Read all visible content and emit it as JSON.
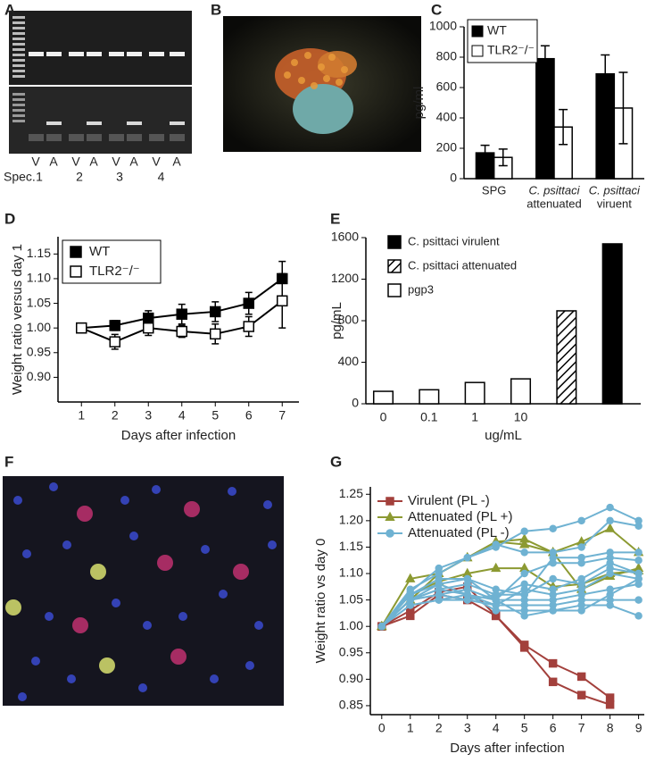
{
  "panel_labels": [
    "A",
    "B",
    "C",
    "D",
    "E",
    "F",
    "G"
  ],
  "gel": {
    "lanes": [
      "V",
      "A",
      "V",
      "A",
      "V",
      "A",
      "V",
      "A"
    ],
    "row_label": "Spec.",
    "specimens": [
      "1",
      "2",
      "3",
      "4"
    ]
  },
  "chart_data": [
    {
      "type": "bar",
      "ylabel": "pg/ml",
      "categories": [
        [
          "SPG"
        ],
        [
          "C. psittaci",
          "attenuated"
        ],
        [
          "C. psittaci",
          "viruent"
        ]
      ],
      "series": [
        {
          "name": "WT",
          "color": "#000000",
          "values": [
            170,
            790,
            690
          ],
          "errors": [
            50,
            85,
            125
          ]
        },
        {
          "name": "TLR2⁻/⁻",
          "color": "#ffffff",
          "values": [
            140,
            340,
            465
          ],
          "errors": [
            55,
            115,
            235
          ]
        }
      ],
      "ylim": [
        0,
        1000
      ],
      "yticks": [
        0,
        200,
        400,
        600,
        800,
        1000
      ],
      "legend": "upper left"
    },
    {
      "type": "line",
      "xlabel": "Days after infection",
      "ylabel": "Weight ratio versus day 1",
      "x": [
        1,
        2,
        3,
        4,
        5,
        6,
        7
      ],
      "series": [
        {
          "name": "WT",
          "color": "#000000",
          "marker": "square",
          "filled": true,
          "values": [
            1.0,
            1.005,
            1.02,
            1.028,
            1.033,
            1.05,
            1.1
          ],
          "errors": [
            0.005,
            0.01,
            0.015,
            0.02,
            0.02,
            0.022,
            0.035
          ]
        },
        {
          "name": "TLR2⁻/⁻",
          "color": "#000000",
          "marker": "square",
          "filled": false,
          "values": [
            1.0,
            0.972,
            1.0,
            0.993,
            0.988,
            1.003,
            1.055
          ],
          "errors": [
            0.005,
            0.015,
            0.015,
            0.012,
            0.02,
            0.02,
            0.055
          ]
        }
      ],
      "xlim": [
        0.3,
        7.5
      ],
      "xticks": [
        1,
        2,
        3,
        4,
        5,
        6,
        7
      ],
      "ylim": [
        0.85,
        1.185
      ],
      "yticks": [
        {
          "value": 0.9,
          "label": "0.90"
        },
        0.95,
        {
          "value": 1.0,
          "label": "1.00"
        },
        1.05,
        {
          "value": 1.1,
          "label": "1.10"
        },
        1.15
      ],
      "legend": "upper left"
    },
    {
      "type": "bar",
      "xlabel": "ug/mL",
      "ylabel": "pg/mL",
      "categories": [
        "0",
        "0.1",
        "1",
        "10",
        null,
        null
      ],
      "series": [
        {
          "name": "C. psittaci virulent",
          "color": "#000000",
          "hatch": false,
          "values": [
            null,
            null,
            null,
            null,
            null,
            1540
          ]
        },
        {
          "name": "C. psittaci attenuated",
          "color": "#ffffff",
          "hatch": true,
          "values": [
            null,
            null,
            null,
            null,
            895,
            null
          ]
        },
        {
          "name": "pgp3",
          "color": "#ffffff",
          "hatch": false,
          "values": [
            120,
            135,
            205,
            240,
            null,
            null
          ]
        }
      ],
      "ylim": [
        0,
        1600
      ],
      "yticks": [
        0,
        400,
        800,
        1200,
        1600
      ],
      "legend": "upper left"
    },
    {
      "type": "line",
      "xlabel": "Days after infection",
      "ylabel": "Weight ratio vs day 0",
      "x": [
        0,
        1,
        2,
        3,
        4,
        5,
        6,
        7,
        8,
        9
      ],
      "series": [
        {
          "name": "Virulent (PL -)",
          "color": "#a3403c",
          "marker": "square",
          "filled": true,
          "lines": [
            [
              1.0,
              1.03,
              1.065,
              1.075,
              1.02,
              0.965,
              0.93,
              0.905,
              0.865,
              null
            ],
            [
              1.0,
              1.02,
              1.06,
              1.05,
              1.02,
              0.96,
              0.895,
              0.87,
              0.852,
              null
            ]
          ]
        },
        {
          "name": "Attenuated  (PL +)",
          "color": "#8c9a32",
          "marker": "triangle",
          "filled": true,
          "lines": [
            [
              1.0,
              1.09,
              1.1,
              1.13,
              1.16,
              1.165,
              1.14,
              1.16,
              1.185,
              1.14
            ],
            [
              1.0,
              1.06,
              1.085,
              1.1,
              1.11,
              1.11,
              1.075,
              1.08,
              1.1,
              1.105
            ],
            [
              1.0,
              1.05,
              1.1,
              1.13,
              1.16,
              1.155,
              1.14,
              1.07,
              1.095,
              1.11
            ]
          ]
        },
        {
          "name": "Attenuated  (PL -)",
          "color": "#6fb2d2",
          "marker": "circle",
          "filled": true,
          "lines": [
            [
              1.0,
              1.065,
              1.11,
              1.13,
              1.15,
              1.18,
              1.185,
              1.2,
              1.225,
              1.2
            ],
            [
              1.0,
              1.07,
              1.1,
              1.13,
              1.155,
              1.14,
              1.14,
              1.15,
              1.2,
              1.19
            ],
            [
              1.0,
              1.06,
              1.09,
              1.09,
              1.07,
              1.06,
              1.13,
              1.13,
              1.14,
              1.14
            ],
            [
              1.0,
              1.05,
              1.08,
              1.09,
              1.05,
              1.1,
              1.12,
              1.12,
              1.13,
              1.125
            ],
            [
              1.0,
              1.05,
              1.07,
              1.08,
              1.06,
              1.06,
              1.09,
              1.08,
              1.11,
              1.1
            ],
            [
              1.0,
              1.06,
              1.08,
              1.06,
              1.04,
              1.07,
              1.06,
              1.07,
              1.1,
              1.09
            ],
            [
              1.0,
              1.05,
              1.06,
              1.07,
              1.05,
              1.05,
              1.05,
              1.06,
              1.07,
              1.08
            ],
            [
              1.0,
              1.05,
              1.06,
              1.05,
              1.04,
              1.04,
              1.04,
              1.05,
              1.05,
              1.05
            ],
            [
              1.0,
              1.04,
              1.05,
              1.06,
              1.03,
              1.03,
              1.03,
              1.04,
              1.04,
              1.02
            ],
            [
              1.0,
              1.04,
              1.05,
              1.05,
              1.06,
              1.08,
              1.07,
              1.09,
              1.12,
              1.1
            ],
            [
              1.0,
              1.05,
              1.07,
              1.06,
              1.05,
              1.02,
              1.03,
              1.03,
              1.06,
              1.09
            ]
          ]
        }
      ],
      "xlim": [
        -0.4,
        9.2
      ],
      "xticks": [
        0,
        1,
        2,
        3,
        4,
        5,
        6,
        7,
        8,
        9
      ],
      "ylim": [
        0.833,
        1.264
      ],
      "yticks": [
        0.85,
        {
          "value": 0.9,
          "label": "0.90"
        },
        0.95,
        {
          "value": 1.0,
          "label": "1.00"
        },
        1.05,
        {
          "value": 1.1,
          "label": "1.10"
        },
        1.15,
        {
          "value": 1.2,
          "label": "1.20"
        },
        1.25
      ],
      "legend": "upper left"
    }
  ]
}
